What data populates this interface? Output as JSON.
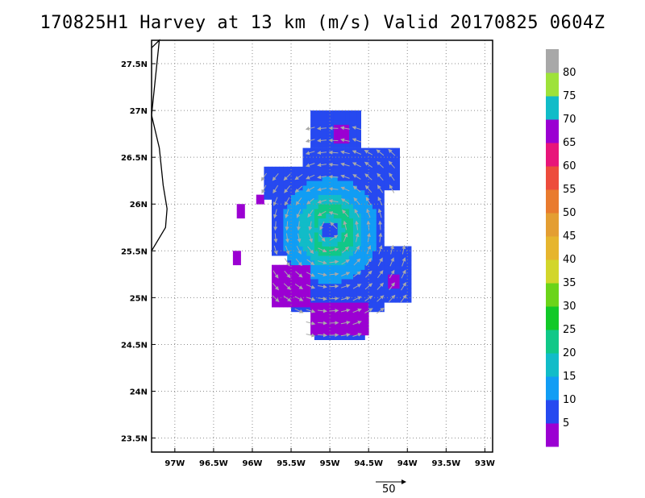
{
  "title": "170825H1 Harvey at 13 km (m/s) Valid 20170825 0604Z",
  "map": {
    "lon_range": [
      -97.3,
      -92.9
    ],
    "lat_range": [
      23.35,
      27.75
    ],
    "lon_ticks": [
      {
        "v": -97,
        "label": "97W"
      },
      {
        "v": -96.5,
        "label": "96.5W"
      },
      {
        "v": -96,
        "label": "96W"
      },
      {
        "v": -95.5,
        "label": "95.5W"
      },
      {
        "v": -95,
        "label": "95W"
      },
      {
        "v": -94.5,
        "label": "94.5W"
      },
      {
        "v": -94,
        "label": "94W"
      },
      {
        "v": -93.5,
        "label": "93.5W"
      },
      {
        "v": -93,
        "label": "93W"
      }
    ],
    "lat_ticks": [
      {
        "v": 23.5,
        "label": "23.5N"
      },
      {
        "v": 24,
        "label": "24N"
      },
      {
        "v": 24.5,
        "label": "24.5N"
      },
      {
        "v": 25,
        "label": "25N"
      },
      {
        "v": 25.5,
        "label": "25.5N"
      },
      {
        "v": 26,
        "label": "26N"
      },
      {
        "v": 26.5,
        "label": "26.5N"
      },
      {
        "v": 27,
        "label": "27N"
      },
      {
        "v": 27.5,
        "label": "27.5N"
      }
    ],
    "grid": "dotted",
    "coastline": [
      [
        -97.3,
        27.67
      ],
      [
        -97.2,
        27.75
      ],
      [
        -97.3,
        26.95
      ],
      [
        -97.2,
        26.6
      ],
      [
        -97.15,
        26.2
      ],
      [
        -97.1,
        25.95
      ],
      [
        -97.12,
        25.75
      ],
      [
        -97.3,
        25.5
      ]
    ],
    "center": [
      -95.0,
      25.72
    ],
    "reference_vector": {
      "value": 50,
      "label": "50"
    }
  },
  "colorbar": {
    "levels": [
      {
        "label": "5",
        "color": "#9b00d2"
      },
      {
        "label": "10",
        "color": "#2649f0"
      },
      {
        "label": "15",
        "color": "#119df4"
      },
      {
        "label": "20",
        "color": "#11bcc8"
      },
      {
        "label": "25",
        "color": "#10c888"
      },
      {
        "label": "30",
        "color": "#11c928"
      },
      {
        "label": "35",
        "color": "#6bd419"
      },
      {
        "label": "40",
        "color": "#d2d62b"
      },
      {
        "label": "45",
        "color": "#e6b52e"
      },
      {
        "label": "50",
        "color": "#e49e32"
      },
      {
        "label": "55",
        "color": "#e97b2e"
      },
      {
        "label": "60",
        "color": "#ed4c3c"
      },
      {
        "label": "65",
        "color": "#e8157a"
      },
      {
        "label": "70",
        "color": "#9b00d2"
      },
      {
        "label": "75",
        "color": "#11bcc8"
      },
      {
        "label": "80",
        "color": "#9ee23a"
      },
      {
        "label": "",
        "color": "#a8a8a8"
      }
    ]
  },
  "chart_data": {
    "type": "heatmap",
    "title": "170825H1 Harvey at 13 km (m/s) Valid 20170825 0604Z",
    "variable": "wind speed (m/s)",
    "xlabel": "",
    "ylabel": "",
    "xlim": [
      -97.3,
      -92.9
    ],
    "ylim": [
      23.35,
      27.75
    ],
    "wind_speed_range_ms": [
      0,
      25
    ]
  }
}
